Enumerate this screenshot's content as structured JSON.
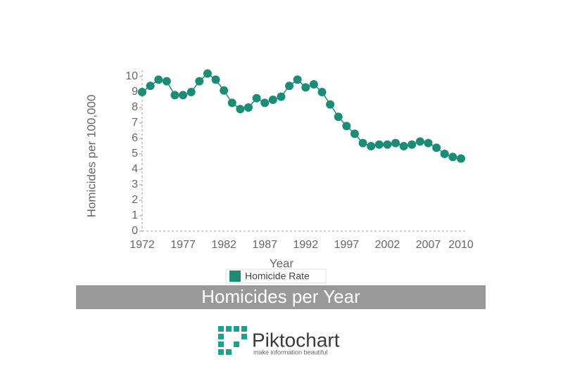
{
  "chart_data": {
    "type": "line",
    "title": "Homicides per Year",
    "x_label": "Year",
    "y_label": "Homicides per 100,000",
    "categories": [
      "1972",
      null,
      null,
      null,
      null,
      "1977",
      null,
      null,
      null,
      null,
      "1982",
      null,
      null,
      null,
      null,
      "1987",
      null,
      null,
      null,
      null,
      "1992",
      null,
      null,
      null,
      null,
      "1997",
      null,
      null,
      null,
      null,
      "2002",
      null,
      null,
      null,
      null,
      "2007",
      null,
      null,
      null,
      "2010"
    ],
    "series": [
      {
        "name": "Homicide Rate",
        "color": "#1b8c76",
        "values": [
          9.0,
          9.4,
          9.8,
          9.7,
          8.8,
          8.8,
          9.0,
          9.7,
          10.2,
          9.8,
          9.1,
          8.3,
          7.9,
          8.0,
          8.6,
          8.3,
          8.5,
          8.7,
          9.4,
          9.8,
          9.3,
          9.5,
          9.0,
          8.2,
          7.4,
          6.8,
          6.3,
          5.7,
          5.5,
          5.6,
          5.6,
          5.7,
          5.5,
          5.6,
          5.8,
          5.7,
          5.4,
          5.0,
          4.8,
          4.7
        ]
      }
    ],
    "ylim": [
      0,
      10
    ],
    "yticks": [
      0,
      1,
      2,
      3,
      4,
      5,
      6,
      7,
      8,
      9,
      10
    ],
    "legend": "bottom"
  },
  "footer": {
    "brand": "Piktochart",
    "tagline": "make information beautiful"
  }
}
